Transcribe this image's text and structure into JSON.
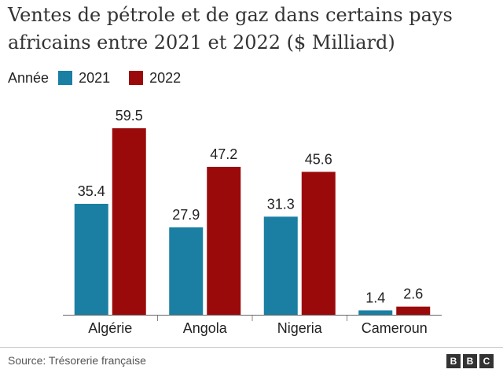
{
  "title": "Ventes de pétrole et de gaz dans certains pays africains entre 2021 et 2022 ($ Milliard)",
  "legend": {
    "title": "Année",
    "items": [
      {
        "label": "2021",
        "color": "#1a7fa3"
      },
      {
        "label": "2022",
        "color": "#9b0a0a"
      }
    ]
  },
  "chart_data": {
    "type": "bar",
    "title": "Ventes de pétrole et de gaz dans certains pays africains entre 2021 et 2022 ($ Milliard)",
    "categories": [
      "Algérie",
      "Angola",
      "Nigeria",
      "Cameroun"
    ],
    "series": [
      {
        "name": "2021",
        "color": "#1a7fa3",
        "values": [
          35.4,
          27.9,
          31.3,
          1.4
        ]
      },
      {
        "name": "2022",
        "color": "#9b0a0a",
        "values": [
          59.5,
          47.2,
          45.6,
          2.6
        ]
      }
    ],
    "xlabel": "",
    "ylabel": "",
    "ylim": [
      0,
      59.5
    ],
    "legend_position": "top-left",
    "grid": false
  },
  "footer": {
    "source": "Source: Trésorerie française",
    "logo_letters": [
      "B",
      "B",
      "C"
    ]
  }
}
